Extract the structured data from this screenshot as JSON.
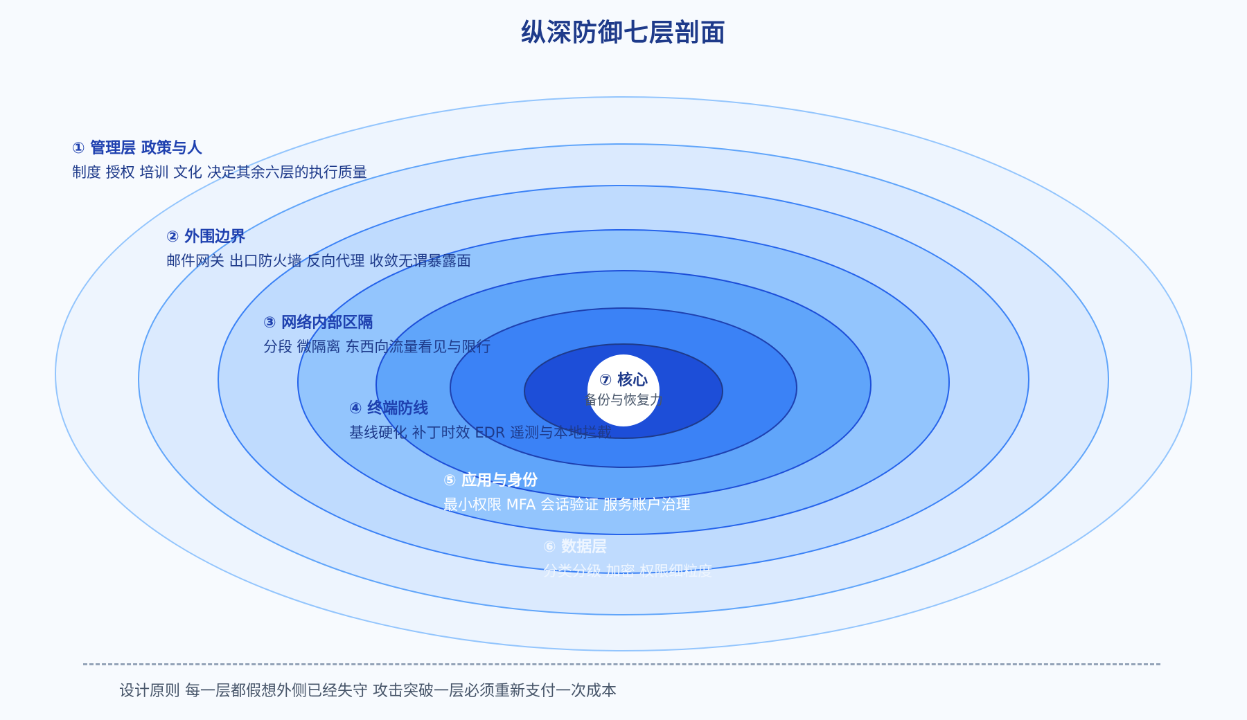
{
  "title": "纵深防御七层剖面",
  "layers": [
    {
      "name": "① 管理层 政策与人",
      "desc": "制度 授权 培训 文化 决定其余六层的执行质量",
      "fill": "#eef5fe",
      "stroke": "#93c5fd",
      "name_color": "#1e40af",
      "desc_color": "#1e3a8a"
    },
    {
      "name": "② 外围边界",
      "desc": "邮件网关 出口防火墙 反向代理 收敛无谓暴露面",
      "fill": "#dbeafe",
      "stroke": "#60a5fa",
      "name_color": "#1e40af",
      "desc_color": "#1e3a8a"
    },
    {
      "name": "③ 网络内部区隔",
      "desc": "分段 微隔离 东西向流量看见与限行",
      "fill": "#bfdbfe",
      "stroke": "#3b82f6",
      "name_color": "#1e40af",
      "desc_color": "#1e3a8a"
    },
    {
      "name": "④ 终端防线",
      "desc": "基线硬化 补丁时效 EDR 遥测与本地拦截",
      "fill": "#93c5fd",
      "stroke": "#2563eb",
      "name_color": "#1e40af",
      "desc_color": "#1e3a8a"
    },
    {
      "name": "⑤ 应用与身份",
      "desc": "最小权限 MFA 会话验证 服务账户治理",
      "fill": "#60a5fa",
      "stroke": "#1d4ed8",
      "name_color": "#ffffff",
      "desc_color": "#ffffff"
    },
    {
      "name": "⑥ 数据层",
      "desc": "分类分级 加密 权限细粒度",
      "fill": "#3b82f6",
      "stroke": "#1e40af",
      "name_color": "#eff6ff",
      "desc_color": "#eff6ff"
    },
    {
      "name": "⑦ 核心",
      "desc": "备份与恢复力",
      "fill": "#1d4ed8",
      "stroke": "#1e3a8a",
      "name_color": "#1e3a8a",
      "desc_color": "#475569"
    }
  ],
  "footer": "设计原则 每一层都假想外侧已经失守 攻击突破一层必须重新支付一次成本"
}
